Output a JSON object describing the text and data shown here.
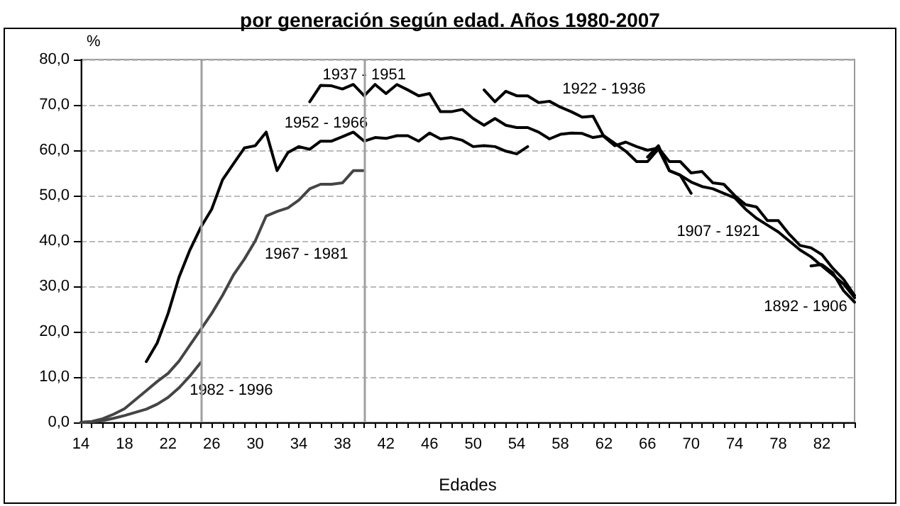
{
  "chart_data": {
    "type": "line",
    "title": "por generación según edad. Años 1980-2007",
    "xlabel": "Edades",
    "ylabel": "%",
    "xlim": [
      14,
      85
    ],
    "xticks": [
      14,
      18,
      22,
      26,
      30,
      34,
      38,
      42,
      46,
      50,
      54,
      58,
      62,
      66,
      70,
      74,
      78,
      82
    ],
    "ylim": [
      0,
      80
    ],
    "yticks": [
      {
        "value": 0,
        "label": "0,0"
      },
      {
        "value": 10,
        "label": "10,0"
      },
      {
        "value": 20,
        "label": "20,0"
      },
      {
        "value": 30,
        "label": "30,0"
      },
      {
        "value": 40,
        "label": "40,0"
      },
      {
        "value": 50,
        "label": "50,0"
      },
      {
        "value": 60,
        "label": "60,0"
      },
      {
        "value": 70,
        "label": "70,0"
      },
      {
        "value": 80,
        "label": "80,0"
      }
    ],
    "grid": "y",
    "legend": false,
    "marker": "none",
    "line_style": "solid",
    "ref_lines": [
      {
        "axis": "x",
        "value": 25,
        "color": "#a0a0a0"
      },
      {
        "axis": "x",
        "value": 40,
        "color": "#a0a0a0"
      }
    ],
    "series": [
      {
        "name": "1982 - 1996",
        "color": "#454545",
        "x": [
          14,
          15,
          16,
          17,
          18,
          19,
          20,
          21,
          22,
          23,
          24,
          25
        ],
        "values": [
          0,
          0.1,
          0.4,
          0.9,
          1.5,
          2.2,
          2.9,
          4.0,
          5.5,
          7.6,
          10.2,
          13.2
        ]
      },
      {
        "name": "1967 - 1981",
        "color": "#454545",
        "x": [
          14,
          15,
          16,
          17,
          18,
          19,
          20,
          21,
          22,
          23,
          24,
          25,
          26,
          27,
          28,
          29,
          30,
          31,
          32,
          33,
          34,
          35,
          36,
          37,
          38,
          39,
          40
        ],
        "values": [
          0,
          0.2,
          0.8,
          1.8,
          3.0,
          5.0,
          7.0,
          9.0,
          10.8,
          13.5,
          17,
          20.5,
          24,
          28,
          32.5,
          36,
          40,
          45.5,
          46.5,
          47.3,
          49,
          51.5,
          52.5,
          52.5,
          52.8,
          55.5,
          55.5
        ]
      },
      {
        "name": "1952 - 1966",
        "color": "#000000",
        "x": [
          20,
          21,
          22,
          23,
          24,
          25,
          26,
          27,
          28,
          29,
          30,
          31,
          32,
          33,
          34,
          35,
          36,
          37,
          38,
          39,
          40,
          41,
          42,
          43,
          44,
          45,
          46,
          47,
          48,
          49,
          50,
          51,
          52,
          53,
          54,
          55
        ],
        "values": [
          13.4,
          17.5,
          24,
          32,
          38,
          43,
          47,
          53.5,
          57,
          60.5,
          61,
          64,
          55.5,
          59.5,
          60.8,
          60.2,
          62,
          62,
          63,
          64,
          62,
          62.8,
          62.6,
          63.2,
          63.2,
          62,
          63.8,
          62.5,
          62.8,
          62.2,
          60.8,
          61,
          60.8,
          59.8,
          59.2,
          60.8
        ]
      },
      {
        "name": "1937 - 1951",
        "color": "#000000",
        "x": [
          35,
          36,
          37,
          38,
          39,
          40,
          41,
          42,
          43,
          44,
          45,
          46,
          47,
          48,
          49,
          50,
          51,
          52,
          53,
          54,
          55,
          56,
          57,
          58,
          59,
          60,
          61,
          62,
          63,
          64,
          65,
          66,
          67,
          68,
          69,
          70
        ],
        "values": [
          70.7,
          74.3,
          74.2,
          73.5,
          74.5,
          72,
          74.5,
          72.5,
          74.5,
          73.3,
          72,
          72.5,
          68.5,
          68.5,
          69,
          67,
          65.5,
          67,
          65.5,
          65,
          65,
          64,
          62.5,
          63.5,
          63.8,
          63.7,
          62.8,
          63.2,
          61.5,
          59.8,
          57.5,
          57.5,
          60.3,
          55.5,
          54.5,
          50.5
        ]
      },
      {
        "name": "1922 - 1936",
        "color": "#000000",
        "x": [
          51,
          52,
          53,
          54,
          55,
          56,
          57,
          58,
          59,
          60,
          61,
          62,
          63,
          64,
          65,
          66,
          67,
          68,
          69,
          70,
          71,
          72,
          73,
          74,
          75,
          76,
          77,
          78,
          79,
          80,
          81,
          82,
          83,
          84,
          85
        ],
        "values": [
          73.3,
          70.7,
          73,
          72,
          72,
          70.5,
          70.8,
          69.5,
          68.5,
          67.3,
          67.5,
          63,
          61,
          61.8,
          60.8,
          60,
          60.5,
          57.5,
          57.5,
          55,
          55.3,
          52.8,
          52.5,
          50,
          48,
          47.5,
          44.5,
          44.5,
          41.5,
          39,
          38.5,
          37,
          34,
          31.5,
          28
        ]
      },
      {
        "name": "1907 - 1921",
        "color": "#000000",
        "x": [
          66,
          67,
          68,
          69,
          70,
          71,
          72,
          73,
          74,
          75,
          76,
          77,
          78,
          79,
          80,
          81,
          82,
          83,
          84,
          85
        ],
        "values": [
          58.5,
          61,
          55.5,
          54.5,
          53,
          52,
          51.5,
          50.5,
          49.5,
          47,
          45,
          43.5,
          42,
          40,
          38,
          36.5,
          34.5,
          32.5,
          30.5,
          27.5
        ]
      },
      {
        "name": "1892 - 1906",
        "color": "#000000",
        "x": [
          81,
          82,
          83,
          84,
          85
        ],
        "values": [
          34.5,
          34.8,
          33,
          29,
          26.5
        ]
      }
    ]
  }
}
